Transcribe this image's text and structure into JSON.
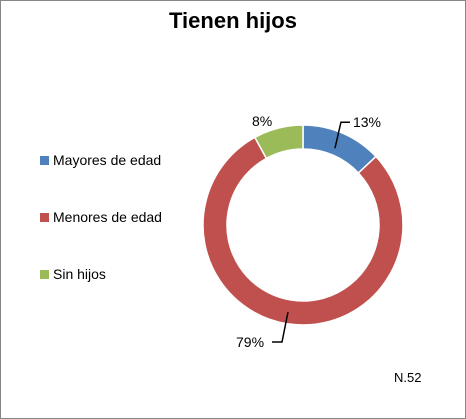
{
  "chart_data": {
    "type": "pie",
    "variant": "doughnut",
    "title": "Tienen hijos",
    "categories": [
      "Mayores de edad",
      "Menores de edad",
      "Sin hijos"
    ],
    "values": [
      13,
      79,
      8
    ],
    "value_labels": [
      "13%",
      "79%",
      "8%"
    ],
    "colors": [
      "#4F81BD",
      "#C0504D",
      "#9BBB59"
    ],
    "legend_placement": "left",
    "footnote": "N.52"
  }
}
